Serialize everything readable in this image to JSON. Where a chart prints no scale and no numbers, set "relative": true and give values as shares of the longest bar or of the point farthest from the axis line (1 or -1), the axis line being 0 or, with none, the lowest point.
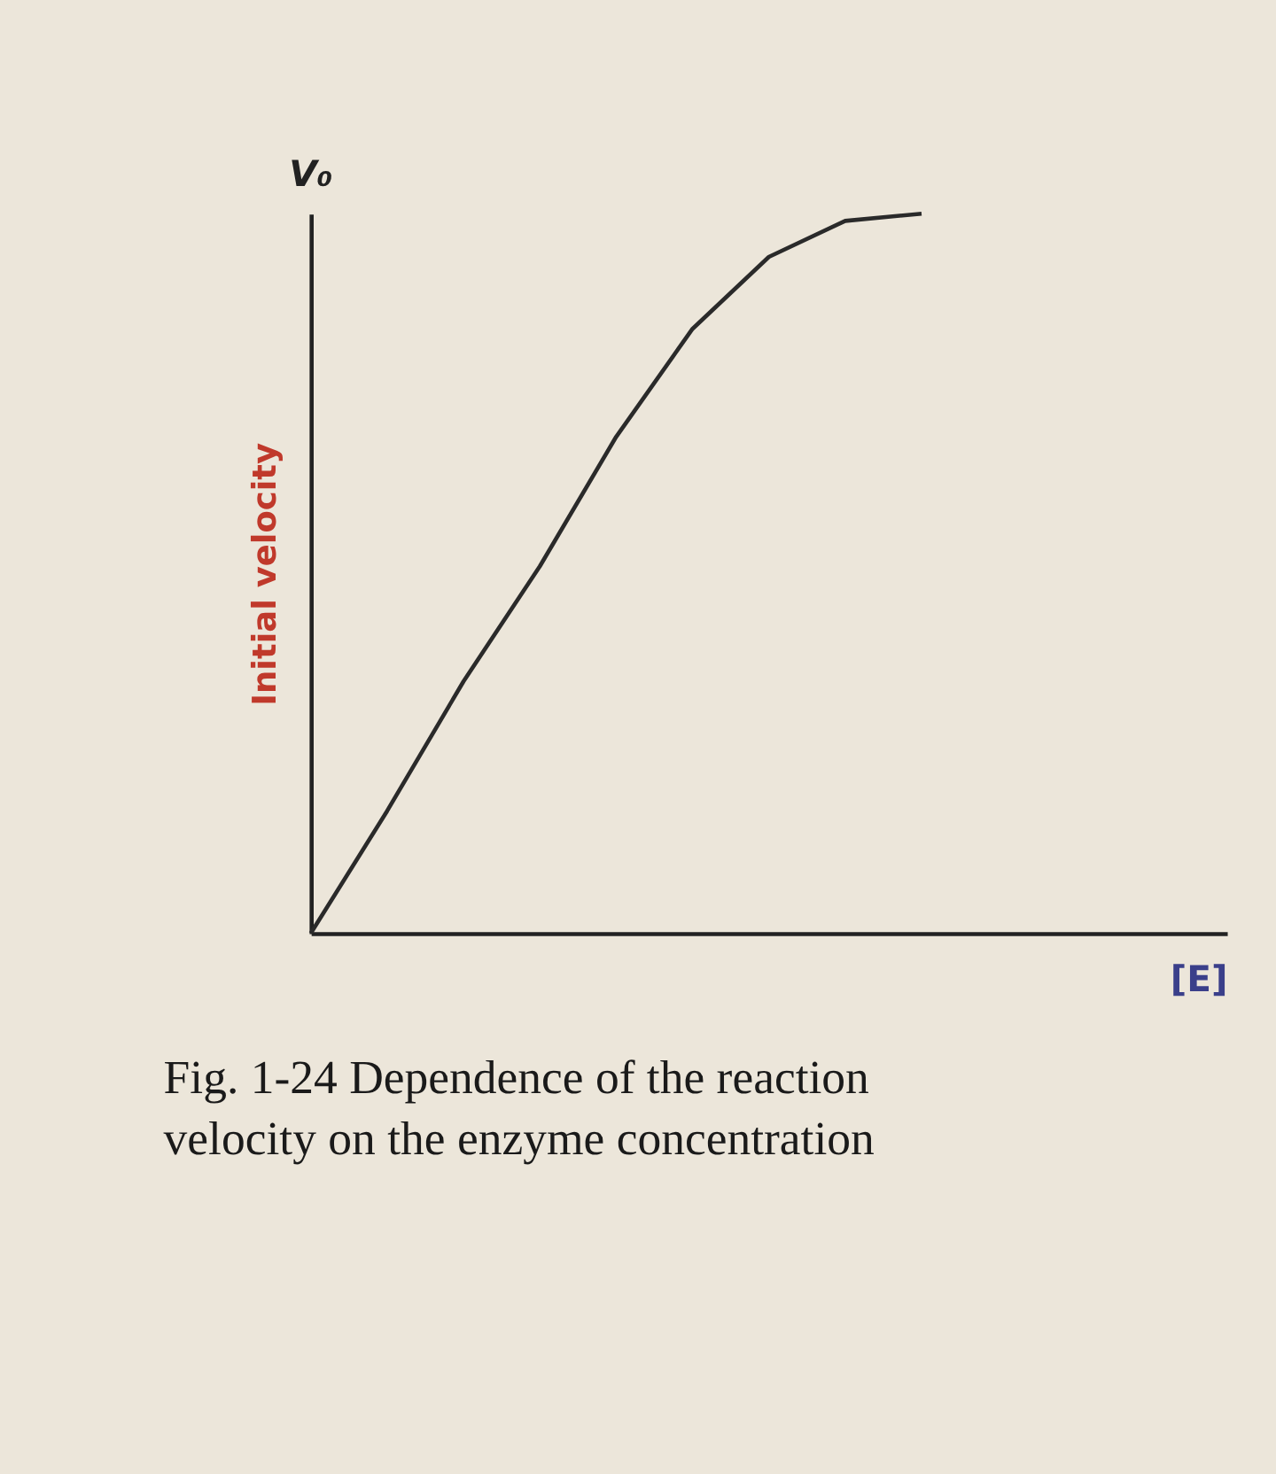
{
  "chart_data": {
    "type": "line",
    "ylabel": "Initial velocity",
    "xlabel": "[E]",
    "annotations": [
      "V₀",
      "Fig. 1-24 Dependence of the reaction velocity on the enzyme concentration"
    ],
    "categories": [
      null,
      null,
      null,
      null,
      null,
      null,
      null,
      null,
      null,
      null,
      null,
      null,
      null
    ],
    "series": [
      {
        "color": "#2a2a2a",
        "values": [
          0,
          0.17,
          0.35,
          0.51,
          0.69,
          0.84,
          0.94,
          0.99,
          1,
          null,
          null,
          null,
          null
        ]
      }
    ],
    "relative": true,
    "grid": false,
    "marker": "none",
    "line_style": "solid"
  }
}
